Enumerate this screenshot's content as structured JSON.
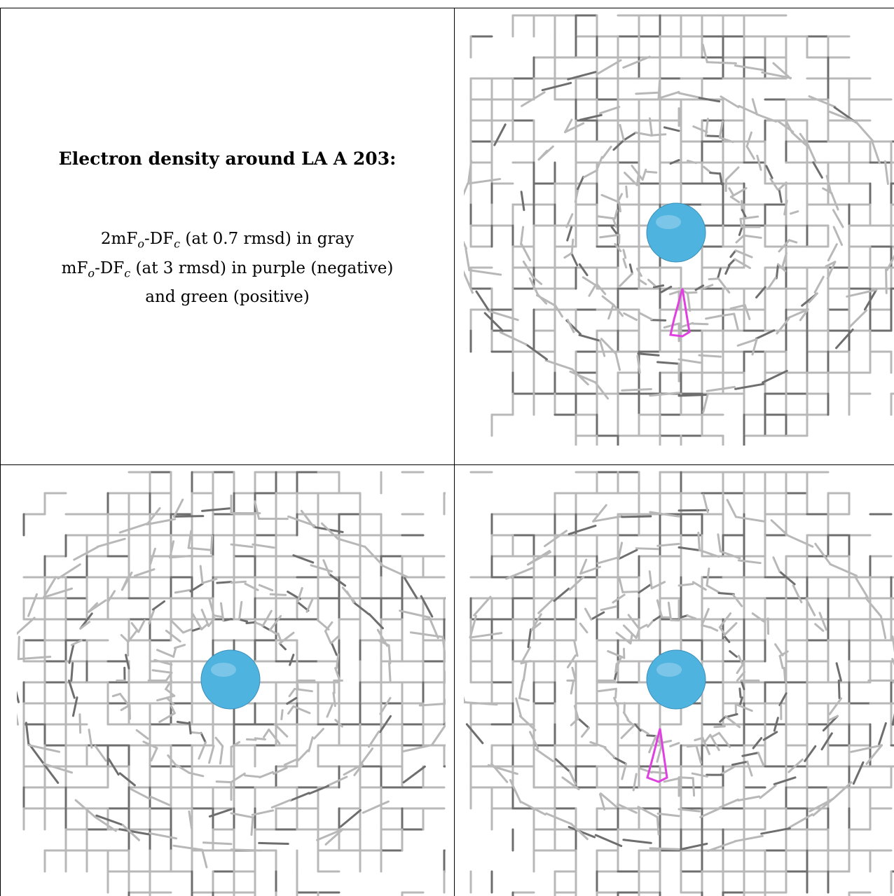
{
  "caption": {
    "title": "Electron density around LA A 203:",
    "line1_prefix": "2mF",
    "line1_sub1": "o",
    "line1_mid": "-DF",
    "line1_sub2": "c",
    "line1_suffix": " (at 0.7 rmsd) in gray",
    "line2_prefix": "mF",
    "line2_sub1": "o",
    "line2_mid": "-DF",
    "line2_sub2": "c",
    "line2_suffix": " (at 3 rmsd) in purple (negative)",
    "line3": "and green (positive)"
  },
  "colors": {
    "mesh_gray": "#b8b8b8",
    "mesh_dark": "#6e6e6e",
    "atom_sphere": "#4fb3e0",
    "negative_density": "#e040e0",
    "border": "#000000"
  },
  "panels": [
    {
      "id": "view-top-right",
      "atom": "LA A 203"
    },
    {
      "id": "view-bottom-left",
      "atom": "LA A 203"
    },
    {
      "id": "view-bottom-right",
      "atom": "LA A 203"
    }
  ]
}
